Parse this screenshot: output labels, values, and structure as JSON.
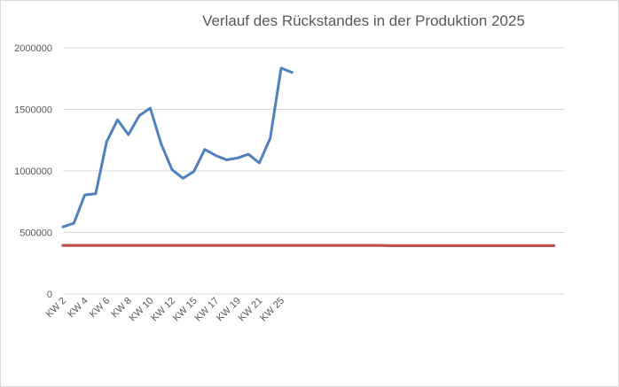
{
  "chart_data": {
    "type": "line",
    "title": "Verlauf des Rückstandes in der Produktion 2025",
    "xlabel": "",
    "ylabel": "",
    "ylim": [
      0,
      2000000
    ],
    "yticks": [
      "0",
      "500000",
      "1000000",
      "1500000",
      "2000000"
    ],
    "x_tick_labels": [
      "KW 2",
      "KW 4",
      "KW 6",
      "KW 8",
      "KW 10",
      "KW 12",
      "KW 15",
      "KW 17",
      "KW 19",
      "KW 21",
      "KW 25"
    ],
    "grid": true,
    "legend": "none",
    "categories_count": 46,
    "series": [
      {
        "color": "#4f81bd",
        "values": [
          545000,
          575000,
          805000,
          815000,
          1235000,
          1415000,
          1295000,
          1450000,
          1510000,
          1220000,
          1010000,
          940000,
          995000,
          1175000,
          1125000,
          1090000,
          1105000,
          1135000,
          1065000,
          1265000,
          1835000,
          1800000
        ]
      },
      {
        "color": "#c0504d",
        "values": [
          395000,
          395000,
          395000,
          395000,
          395000,
          395000,
          395000,
          395000,
          395000,
          395000,
          395000,
          395000,
          395000,
          395000,
          395000,
          395000,
          395000,
          395000,
          395000,
          395000,
          395000,
          395000,
          395000,
          395000,
          395000,
          395000,
          395000,
          395000,
          395000,
          395000,
          393000,
          393000,
          393000,
          393000,
          393000,
          393000,
          393000,
          393000,
          393000,
          393000,
          393000,
          393000,
          393000,
          393000,
          393000,
          393000
        ]
      }
    ]
  }
}
